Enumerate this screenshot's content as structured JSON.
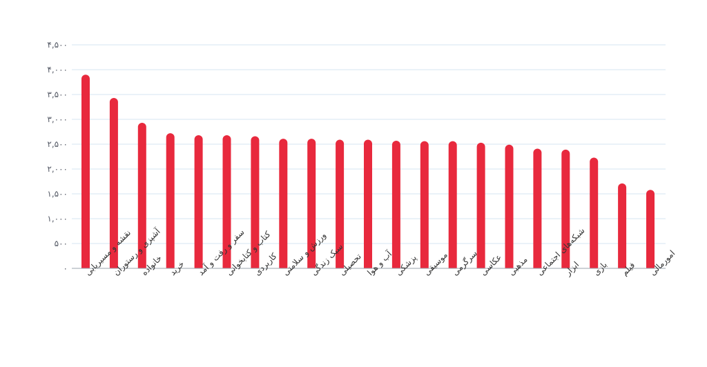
{
  "chart_data": {
    "type": "bar",
    "title": "",
    "xlabel": "",
    "ylabel": "",
    "ylim": [
      0,
      4500
    ],
    "grid": true,
    "bar_color": "#e8293d",
    "grid_color": "#d5e6f1",
    "axis_color": "#9aa3ad",
    "y_ticks": [
      {
        "value": 0,
        "label": "۰"
      },
      {
        "value": 500,
        "label": "۵۰۰"
      },
      {
        "value": 1000,
        "label": "۱,۰۰۰"
      },
      {
        "value": 1500,
        "label": "۱,۵۰۰"
      },
      {
        "value": 2000,
        "label": "۲,۰۰۰"
      },
      {
        "value": 2500,
        "label": "۲,۵۰۰"
      },
      {
        "value": 3000,
        "label": "۳,۰۰۰"
      },
      {
        "value": 3500,
        "label": "۳,۵۰۰"
      },
      {
        "value": 4000,
        "label": "۴,۰۰۰"
      },
      {
        "value": 4500,
        "label": "۴,۵۰۰"
      }
    ],
    "categories": [
      "نقشه و مسیریابی",
      "آشپزی و رستوران",
      "خانواده",
      "خرید",
      "سفر و رفت و آمد",
      "کتاب و کتابخوانی",
      "کاربردی",
      "ورزش و سلامتی",
      "سبک زندگی",
      "تحصیلی",
      "آب و هوا",
      "پزشکی",
      "موسیقی",
      "سرگرمی",
      "عکاسی",
      "مذهبی",
      "شبکه‌های اجتماعی",
      "ابزار",
      "بازی",
      "فیلم",
      "امورمالی"
    ],
    "values": [
      3900,
      3430,
      2930,
      2720,
      2680,
      2680,
      2660,
      2610,
      2610,
      2590,
      2590,
      2570,
      2560,
      2560,
      2530,
      2490,
      2410,
      2390,
      2230,
      1710,
      1580
    ]
  }
}
